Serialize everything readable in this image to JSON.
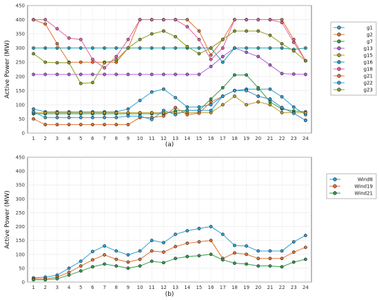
{
  "chart_data": [
    {
      "type": "line",
      "subtitle": "(a)",
      "ylabel": "Active Power (MW)",
      "xlabel": "",
      "ylim": [
        0,
        450
      ],
      "yticks": [
        0,
        50,
        100,
        150,
        200,
        250,
        300,
        350,
        400,
        450
      ],
      "x": [
        1,
        2,
        3,
        4,
        5,
        6,
        7,
        8,
        9,
        10,
        11,
        12,
        13,
        14,
        15,
        16,
        17,
        18,
        19,
        20,
        21,
        22,
        23,
        24
      ],
      "grid": true,
      "legend": "right",
      "series": [
        {
          "name": "g1",
          "color": "#28a0d2",
          "values": [
            85,
            75,
            75,
            75,
            75,
            75,
            75,
            75,
            85,
            115,
            145,
            155,
            125,
            92,
            92,
            100,
            130,
            150,
            155,
            155,
            155,
            128,
            92,
            65
          ]
        },
        {
          "name": "g2",
          "color": "#e0702e",
          "values": [
            400,
            385,
            315,
            250,
            250,
            250,
            250,
            250,
            300,
            400,
            400,
            400,
            400,
            400,
            360,
            275,
            330,
            400,
            400,
            400,
            400,
            400,
            330,
            255
          ]
        },
        {
          "name": "g7",
          "color": "#2f9a4a",
          "values": [
            68,
            68,
            68,
            68,
            68,
            68,
            68,
            68,
            68,
            68,
            68,
            68,
            78,
            80,
            80,
            120,
            160,
            205,
            205,
            160,
            110,
            85,
            78,
            75
          ]
        },
        {
          "name": "g13",
          "color": "#b35dd6",
          "values": [
            207,
            207,
            207,
            207,
            207,
            207,
            207,
            207,
            207,
            207,
            207,
            207,
            207,
            207,
            207,
            235,
            270,
            300,
            285,
            270,
            240,
            210,
            208,
            207
          ]
        },
        {
          "name": "g15",
          "color": "#b59a28",
          "values": [
            72,
            72,
            72,
            72,
            72,
            72,
            72,
            72,
            72,
            72,
            72,
            72,
            72,
            72,
            72,
            72,
            100,
            130,
            100,
            110,
            100,
            72,
            72,
            72
          ]
        },
        {
          "name": "g16",
          "color": "#1aa3b8",
          "values": [
            300,
            300,
            300,
            300,
            300,
            300,
            300,
            300,
            300,
            300,
            300,
            300,
            300,
            300,
            300,
            300,
            250,
            300,
            300,
            300,
            300,
            300,
            295,
            300
          ]
        },
        {
          "name": "g18",
          "color": "#e55ea2",
          "values": [
            400,
            400,
            368,
            335,
            330,
            260,
            230,
            270,
            330,
            400,
            400,
            400,
            400,
            375,
            330,
            260,
            300,
            400,
            400,
            400,
            400,
            390,
            320,
            255
          ]
        },
        {
          "name": "g21",
          "color": "#e0702e",
          "values": [
            50,
            30,
            30,
            30,
            30,
            30,
            30,
            30,
            30,
            55,
            55,
            60,
            90,
            65,
            70,
            110,
            130,
            150,
            150,
            130,
            120,
            90,
            70,
            45
          ]
        },
        {
          "name": "g22",
          "color": "#2fa0d8",
          "values": [
            75,
            55,
            55,
            55,
            55,
            55,
            55,
            55,
            60,
            60,
            48,
            80,
            65,
            80,
            80,
            80,
            130,
            150,
            150,
            130,
            120,
            90,
            70,
            45
          ]
        },
        {
          "name": "g23",
          "color": "#8b9a1e",
          "values": [
            280,
            250,
            248,
            248,
            175,
            178,
            248,
            258,
            300,
            330,
            350,
            360,
            340,
            305,
            280,
            300,
            330,
            360,
            360,
            360,
            345,
            315,
            290,
            255
          ]
        }
      ]
    },
    {
      "type": "line",
      "subtitle": "(b)",
      "ylabel": "Active Power (MW)",
      "xlabel": "",
      "ylim": [
        0,
        450
      ],
      "yticks": [
        0,
        50,
        100,
        150,
        200,
        250,
        300,
        350,
        400,
        450
      ],
      "x": [
        1,
        2,
        3,
        4,
        5,
        6,
        7,
        8,
        9,
        10,
        11,
        12,
        13,
        14,
        15,
        16,
        17,
        18,
        19,
        20,
        21,
        22,
        23,
        24
      ],
      "grid": true,
      "legend": "right",
      "series": [
        {
          "name": "Wind8",
          "color": "#28a0d2",
          "values": [
            15,
            18,
            25,
            50,
            75,
            110,
            130,
            112,
            98,
            112,
            150,
            142,
            172,
            185,
            193,
            200,
            172,
            132,
            130,
            112,
            112,
            112,
            145,
            168
          ]
        },
        {
          "name": "Wind19",
          "color": "#e0702e",
          "values": [
            12,
            12,
            18,
            35,
            58,
            80,
            98,
            82,
            72,
            82,
            112,
            108,
            128,
            140,
            145,
            150,
            85,
            105,
            100,
            85,
            85,
            85,
            108,
            125
          ]
        },
        {
          "name": "Wind21",
          "color": "#2f9a4a",
          "values": [
            8,
            8,
            12,
            25,
            40,
            55,
            65,
            58,
            50,
            58,
            75,
            70,
            85,
            92,
            95,
            100,
            80,
            68,
            65,
            58,
            58,
            55,
            72,
            82
          ]
        }
      ]
    }
  ]
}
